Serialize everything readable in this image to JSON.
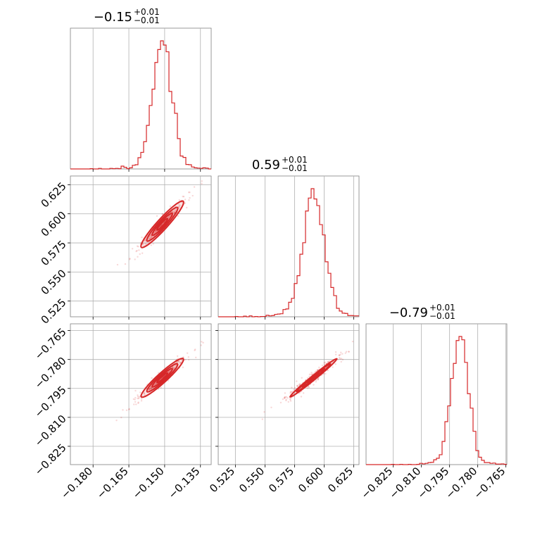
{
  "chart_data": {
    "type": "corner",
    "color": "#d62728",
    "parameters": [
      {
        "title": {
          "median": "−0.15",
          "upper": "+0.01",
          "lower": "−0.01"
        },
        "median": -0.151,
        "sigma": 0.004,
        "range": [
          -0.1895,
          -0.1305
        ],
        "ticks": [
          {
            "value": -0.18,
            "label": "−0.180"
          },
          {
            "value": -0.165,
            "label": "−0.165"
          },
          {
            "value": -0.15,
            "label": "−0.150"
          },
          {
            "value": -0.135,
            "label": "−0.135"
          }
        ]
      },
      {
        "title": {
          "median": "0.59",
          "upper": "+0.01",
          "lower": "−0.01"
        },
        "median": 0.591,
        "sigma": 0.009,
        "range": [
          0.5105,
          0.6295
        ],
        "ticks": [
          {
            "value": 0.525,
            "label": "0.525"
          },
          {
            "value": 0.55,
            "label": "0.550"
          },
          {
            "value": 0.575,
            "label": "0.575"
          },
          {
            "value": 0.6,
            "label": "0.600"
          },
          {
            "value": 0.625,
            "label": "0.625"
          }
        ]
      },
      {
        "title": {
          "median": "−0.79",
          "upper": "+0.01",
          "lower": "−0.01"
        },
        "median": -0.7895,
        "sigma": 0.0045,
        "range": [
          -0.8395,
          -0.7645
        ],
        "ticks": [
          {
            "value": -0.825,
            "label": "−0.825"
          },
          {
            "value": -0.81,
            "label": "−0.810"
          },
          {
            "value": -0.795,
            "label": "−0.795"
          },
          {
            "value": -0.78,
            "label": "−0.780"
          },
          {
            "value": -0.765,
            "label": "−0.765"
          }
        ]
      }
    ],
    "y_axis_ranges": {
      "row1": [
        0.5115,
        0.6325
      ],
      "row2": [
        -0.8345,
        -0.7615
      ]
    },
    "grid": true,
    "contour_levels": 4,
    "scatter_points": "faint"
  }
}
